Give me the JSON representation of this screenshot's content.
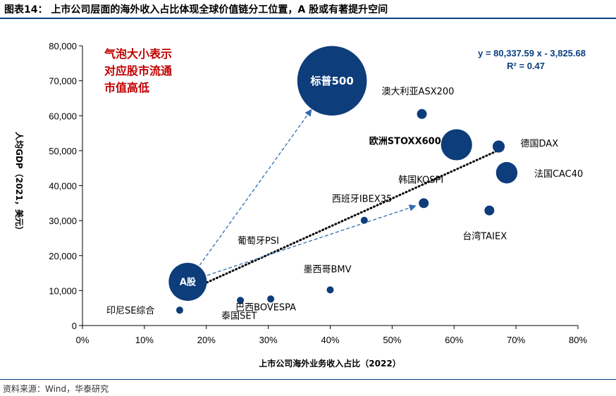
{
  "header": {
    "title": "图表14：  上市公司层面的海外收入占比体现全球价值链分工位置，A 股或有著提升空间"
  },
  "footer": {
    "source": "资料来源：Wind，华泰研究"
  },
  "colors": {
    "bubble": "#0d3d7a",
    "accent": "#0a3f7f",
    "note": "#c00000"
  },
  "chart_data": {
    "type": "scatter",
    "xlabel": "上市公司海外业务收入占比（2022）",
    "ylabel": "人均GDP（2021，美元）",
    "xlim": [
      0,
      0.8
    ],
    "ylim": [
      0,
      80000
    ],
    "x_ticks": [
      "0%",
      "10%",
      "20%",
      "30%",
      "40%",
      "50%",
      "60%",
      "70%",
      "80%"
    ],
    "y_ticks": [
      "0",
      "10,000",
      "20,000",
      "30,000",
      "40,000",
      "50,000",
      "60,000",
      "70,000",
      "80,000"
    ],
    "annotation_note": [
      "气泡大小表示",
      "对应股市流通",
      "市值高低"
    ],
    "equation": "y = 80,337.59 x - 3,825.68",
    "r_squared": "R² = 0.47",
    "points": [
      {
        "label": "标普500",
        "x": 0.403,
        "y": 70000,
        "size": 40.0,
        "label_inside": true
      },
      {
        "label": "A股",
        "x": 0.17,
        "y": 12500,
        "size": 12.0,
        "label_inside": true
      },
      {
        "label": "欧洲STOXX600",
        "x": 0.604,
        "y": 51700,
        "size": 8.0,
        "bold": true
      },
      {
        "label": "法国CAC40",
        "x": 0.685,
        "y": 43700,
        "size": 3.8
      },
      {
        "label": "德国DAX",
        "x": 0.672,
        "y": 51200,
        "size": 1.2
      },
      {
        "label": "澳大利亚ASX200",
        "x": 0.548,
        "y": 60500,
        "size": 0.8
      },
      {
        "label": "韩国KOSPI",
        "x": 0.551,
        "y": 35000,
        "size": 0.8
      },
      {
        "label": "台湾TAIEX",
        "x": 0.657,
        "y": 32900,
        "size": 0.8
      },
      {
        "label": "西班牙IBEX35",
        "x": 0.455,
        "y": 30100,
        "size": 0.3
      },
      {
        "label": "墨西哥BMV",
        "x": 0.4,
        "y": 10200,
        "size": 0.2
      },
      {
        "label": "巴西BOVESPA",
        "x": 0.304,
        "y": 7600,
        "size": 0.4
      },
      {
        "label": "泰国SET",
        "x": 0.255,
        "y": 7200,
        "size": 0.3
      },
      {
        "label": "印尼SE综合",
        "x": 0.157,
        "y": 4400,
        "size": 0.3
      },
      {
        "label": "葡萄牙PSI",
        "x": null,
        "y": null,
        "size": null,
        "text_only": true
      }
    ],
    "trendline": {
      "slope": 80337.59,
      "intercept": -3825.68,
      "style": "dotted"
    },
    "arrows": [
      {
        "from": "A股",
        "to": "标普500"
      },
      {
        "from": "A股",
        "to": "韩国KOSPI"
      }
    ]
  }
}
